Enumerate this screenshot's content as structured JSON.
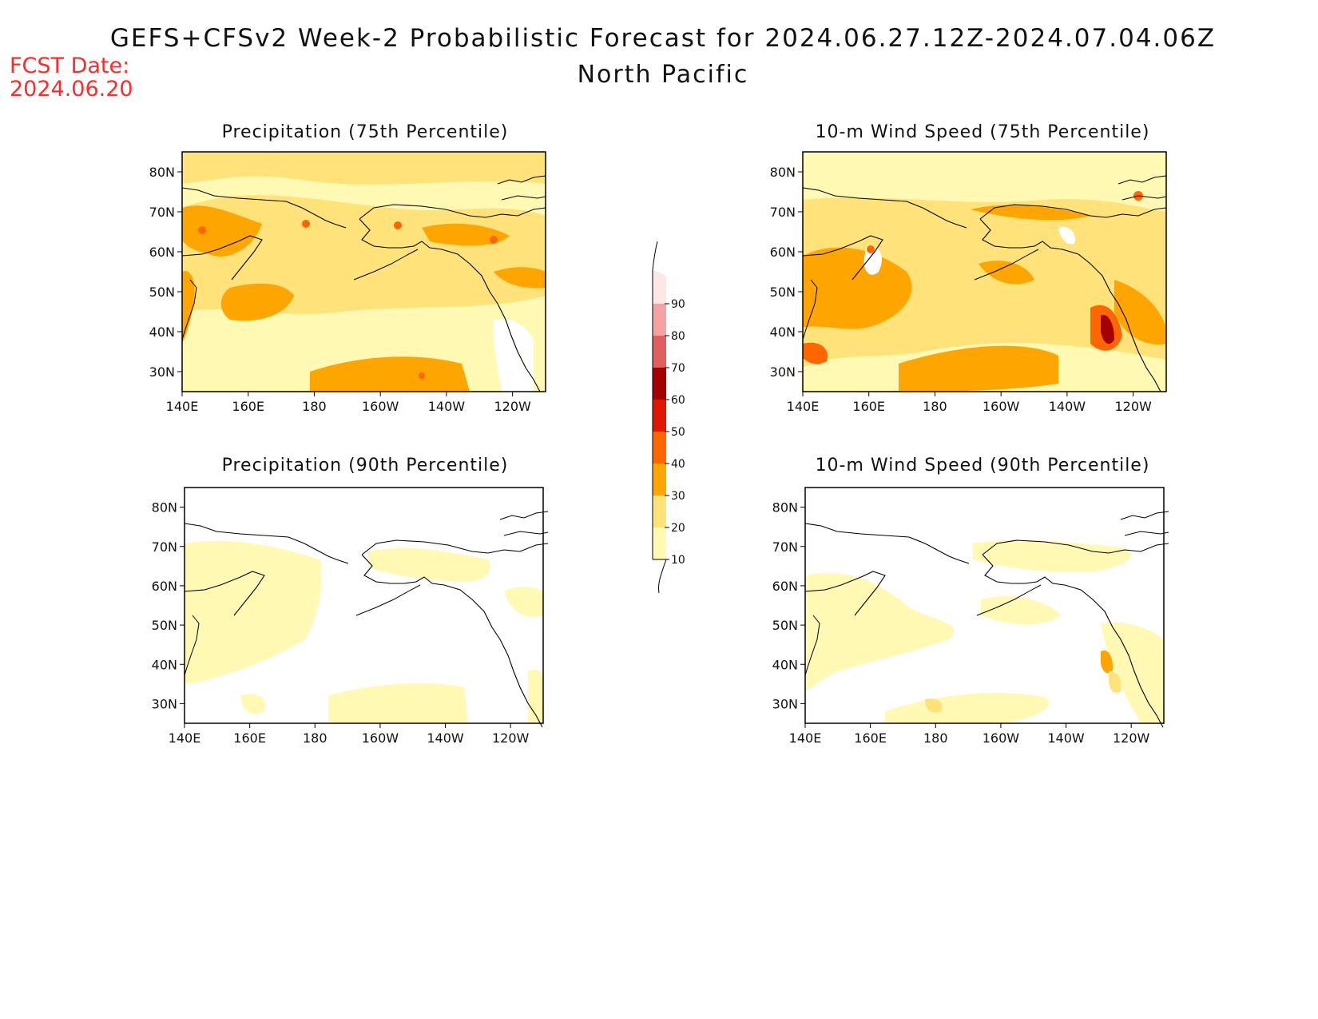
{
  "header": {
    "title": "GEFS+CFSv2 Week-2 Probabilistic Forecast for 2024.06.27.12Z-2024.07.04.06Z",
    "region": "North Pacific",
    "fcst_label": "FCST Date:",
    "fcst_date": "2024.06.20"
  },
  "axes": {
    "lat_labels": [
      "80N",
      "70N",
      "60N",
      "50N",
      "40N",
      "30N"
    ],
    "lat_values": [
      80,
      70,
      60,
      50,
      40,
      30
    ],
    "lon_labels": [
      "140E",
      "160E",
      "180",
      "160W",
      "140W",
      "120W"
    ],
    "lon_values": [
      140,
      160,
      180,
      200,
      220,
      240
    ],
    "lon_range": [
      140,
      250
    ],
    "lat_range": [
      25,
      85
    ]
  },
  "colorbar": {
    "levels": [
      "10",
      "20",
      "30",
      "40",
      "50",
      "60",
      "70",
      "80",
      "90"
    ],
    "colors": [
      "#fff9b4",
      "#ffe37a",
      "#ffa500",
      "#ff6500",
      "#e11800",
      "#a50000",
      "#e06060",
      "#f4a3a3",
      "#fde6e6"
    ]
  },
  "panels": [
    {
      "id": "precip-75",
      "title": "Precipitation (75th Percentile)",
      "intensity": "high"
    },
    {
      "id": "wind-75",
      "title": "10-m Wind Speed (75th Percentile)",
      "intensity": "high"
    },
    {
      "id": "precip-90",
      "title": "Precipitation (90th Percentile)",
      "intensity": "low"
    },
    {
      "id": "wind-90",
      "title": "10-m Wind Speed (90th Percentile)",
      "intensity": "low"
    }
  ]
}
